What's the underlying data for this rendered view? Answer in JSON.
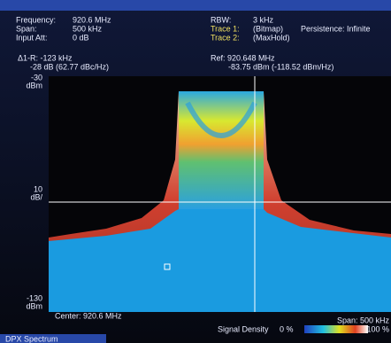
{
  "header": {
    "left": [
      {
        "label": "Frequency:",
        "value": "920.6 MHz"
      },
      {
        "label": "Span:",
        "value": "500 kHz"
      },
      {
        "label": "Input Att:",
        "value": "0 dB"
      }
    ],
    "rbw": {
      "label": "RBW:",
      "value": "3 kHz"
    },
    "trace1": {
      "label": "Trace 1:",
      "value": "(Bitmap)",
      "extra": "Persistence: Infinite"
    },
    "trace2": {
      "label": "Trace 2:",
      "value": "(MaxHold)"
    }
  },
  "markers": {
    "delta": "Δ1-R: -123 kHz",
    "delta_value": "-28 dB (62.77 dBc/Hz)",
    "ref": "Ref: 920.648 MHz",
    "ref_value": "-83.75 dBm (-118.52 dBm/Hz)"
  },
  "axis": {
    "top": "-30",
    "top_unit": "dBm",
    "mid": "10",
    "mid_unit": "dB/",
    "bottom": "-130",
    "bottom_unit": "dBm"
  },
  "footer": {
    "center": "Center: 920.6 MHz",
    "span": "Span: 500 kHz",
    "density": "Signal Density",
    "density_min": "0 %",
    "density_max": "100 %",
    "tab": "DPX Spectrum"
  }
}
